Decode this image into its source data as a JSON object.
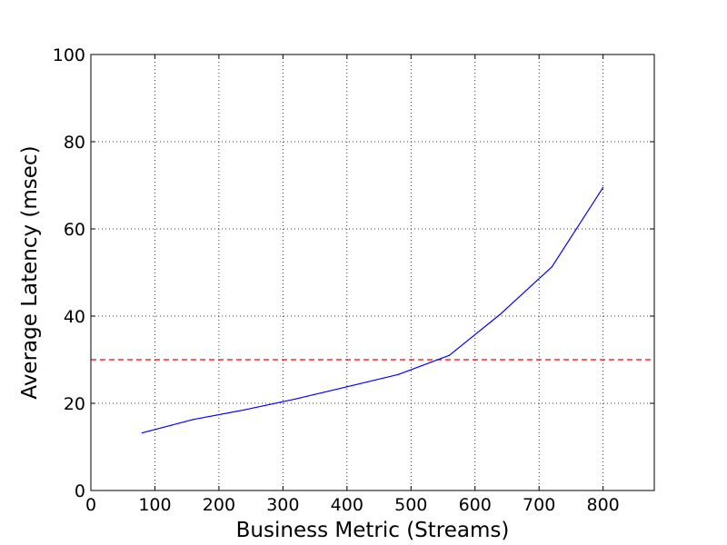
{
  "chart_data": {
    "type": "line",
    "title": "",
    "xlabel": "Business Metric (Streams)",
    "ylabel": "Average Latency (msec)",
    "xlim": [
      0,
      880
    ],
    "ylim": [
      0,
      100
    ],
    "x_ticks": [
      0,
      100,
      200,
      300,
      400,
      500,
      600,
      700,
      800
    ],
    "y_ticks": [
      0,
      20,
      40,
      60,
      80,
      100
    ],
    "grid": true,
    "legend": "none",
    "series": [
      {
        "color": "#0000ff",
        "style": "solid",
        "x": [
          80,
          160,
          240,
          320,
          400,
          480,
          560,
          640,
          720,
          800
        ],
        "y": [
          13.2,
          16.3,
          18.5,
          21.0,
          23.8,
          26.6,
          31.0,
          40.5,
          51.3,
          69.5
        ]
      }
    ],
    "reference_lines": [
      {
        "axis": "y",
        "value": 30,
        "color": "#ff0000",
        "style": "dashed"
      }
    ]
  }
}
